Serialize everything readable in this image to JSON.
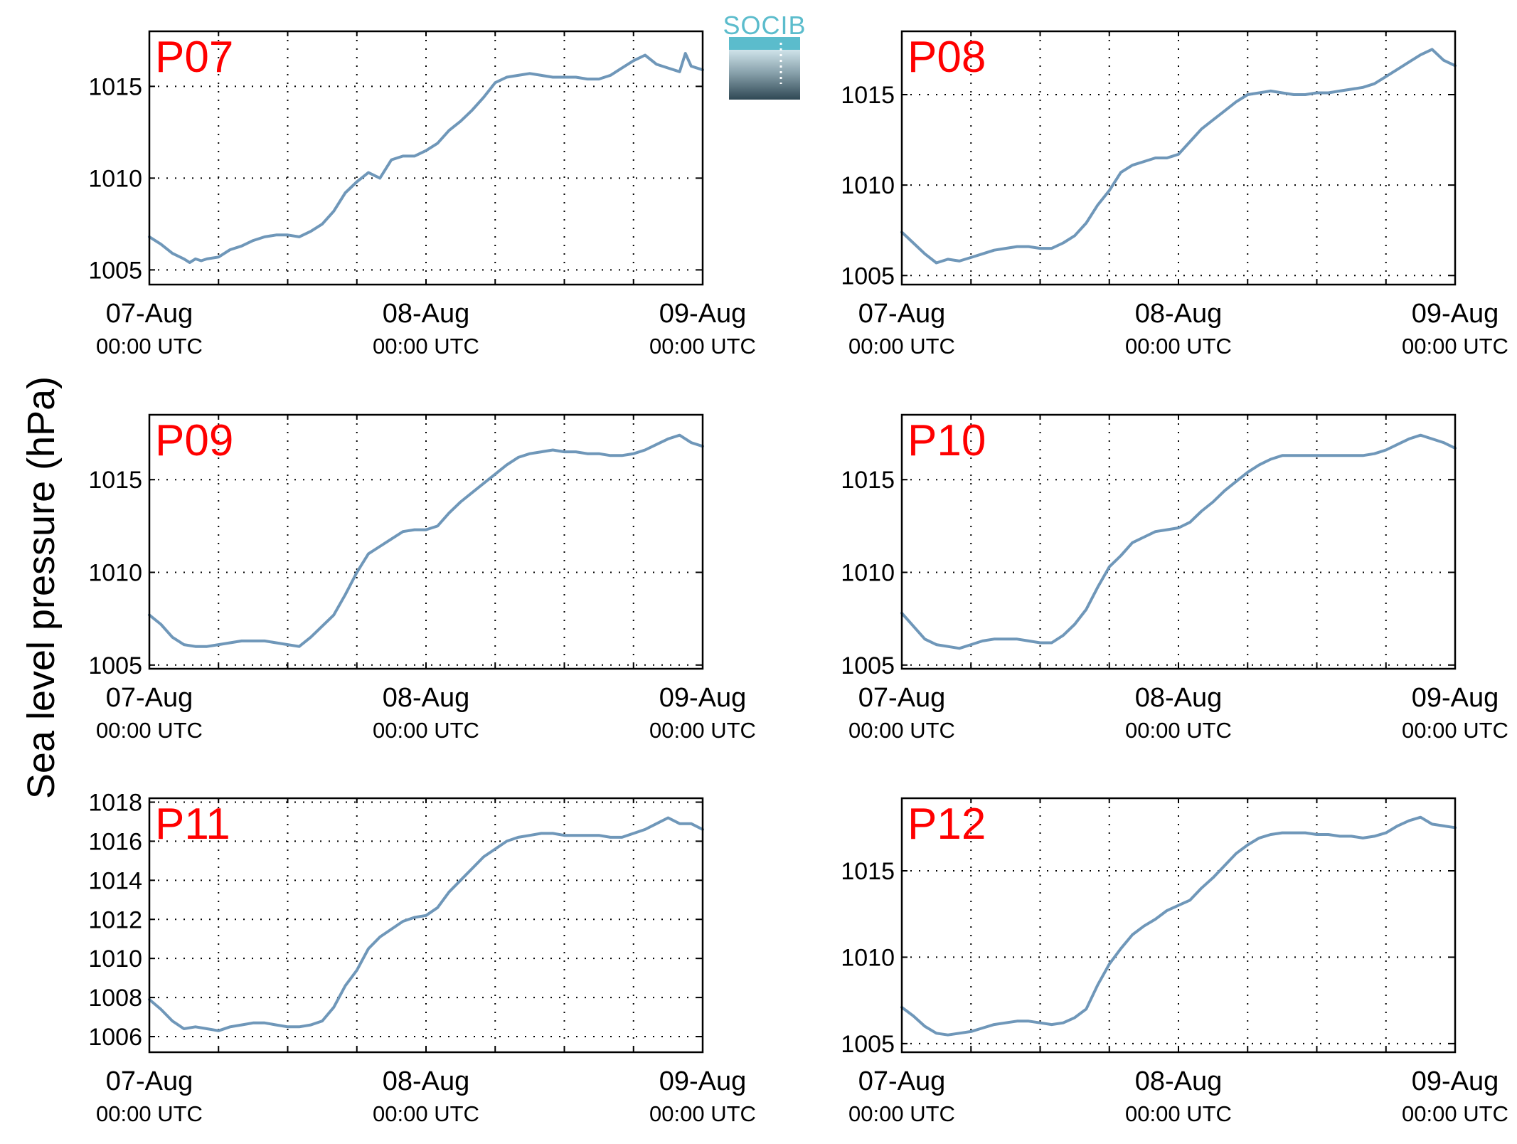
{
  "figure": {
    "ylabel": "Sea level pressure (hPa)",
    "logo_text": "SOCIB"
  },
  "colors": {
    "line": "#6f97b9",
    "panel_label": "#ff0000",
    "grid": "#000000"
  },
  "chart_data": [
    {
      "type": "line",
      "title": "P07",
      "ylim": [
        1004.2,
        1018
      ],
      "yticks": [
        1005,
        1010,
        1015
      ],
      "xlim": [
        0,
        48
      ],
      "xticks": [
        0,
        24,
        48
      ],
      "xticklabels": [
        [
          "07-Aug",
          "00:00 UTC"
        ],
        [
          "08-Aug",
          "00:00 UTC"
        ],
        [
          "09-Aug",
          "00:00 UTC"
        ]
      ],
      "grid": true,
      "series": [
        {
          "x": [
            0,
            1,
            2,
            3,
            3.5,
            4,
            4.5,
            5,
            6,
            7,
            8,
            9,
            10,
            11,
            12,
            13,
            14,
            15,
            16,
            17,
            18,
            19,
            20,
            21,
            21.5,
            22,
            22.5,
            23,
            24,
            25,
            26,
            27,
            28,
            29,
            30,
            31,
            32,
            33,
            34,
            35,
            36,
            37,
            38,
            39,
            40,
            41,
            42,
            43,
            44,
            45,
            46,
            46.5,
            47,
            48
          ],
          "y": [
            1006.8,
            1006.4,
            1005.9,
            1005.6,
            1005.4,
            1005.6,
            1005.5,
            1005.6,
            1005.7,
            1006.1,
            1006.3,
            1006.6,
            1006.8,
            1006.9,
            1006.9,
            1006.8,
            1007.1,
            1007.5,
            1008.2,
            1009.2,
            1009.8,
            1010.3,
            1010.0,
            1011.0,
            1011.1,
            1011.2,
            1011.2,
            1011.2,
            1011.5,
            1011.9,
            1012.6,
            1013.1,
            1013.7,
            1014.4,
            1015.2,
            1015.5,
            1015.6,
            1015.7,
            1015.6,
            1015.5,
            1015.5,
            1015.5,
            1015.4,
            1015.4,
            1015.6,
            1016.0,
            1016.4,
            1016.7,
            1016.2,
            1016.0,
            1015.8,
            1016.8,
            1016.1,
            1015.9
          ]
        }
      ]
    },
    {
      "type": "line",
      "title": "P08",
      "ylim": [
        1004.5,
        1018.5
      ],
      "yticks": [
        1005,
        1010,
        1015
      ],
      "xlim": [
        0,
        48
      ],
      "xticks": [
        0,
        24,
        48
      ],
      "xticklabels": [
        [
          "07-Aug",
          "00:00 UTC"
        ],
        [
          "08-Aug",
          "00:00 UTC"
        ],
        [
          "09-Aug",
          "00:00 UTC"
        ]
      ],
      "grid": true,
      "series": [
        {
          "x": [
            0,
            1,
            2,
            3,
            4,
            5,
            6,
            7,
            8,
            9,
            10,
            11,
            12,
            13,
            14,
            15,
            16,
            17,
            18,
            19,
            20,
            21,
            22,
            23,
            24,
            25,
            26,
            27,
            28,
            29,
            30,
            31,
            32,
            33,
            34,
            35,
            36,
            37,
            38,
            39,
            40,
            41,
            42,
            43,
            44,
            45,
            46,
            47,
            48
          ],
          "y": [
            1007.4,
            1006.8,
            1006.2,
            1005.7,
            1005.9,
            1005.8,
            1006.0,
            1006.2,
            1006.4,
            1006.5,
            1006.6,
            1006.6,
            1006.5,
            1006.5,
            1006.8,
            1007.2,
            1007.9,
            1008.9,
            1009.7,
            1010.7,
            1011.1,
            1011.3,
            1011.5,
            1011.5,
            1011.7,
            1012.4,
            1013.1,
            1013.6,
            1014.1,
            1014.6,
            1015.0,
            1015.1,
            1015.2,
            1015.1,
            1015.0,
            1015.0,
            1015.1,
            1015.1,
            1015.2,
            1015.3,
            1015.4,
            1015.6,
            1016.0,
            1016.4,
            1016.8,
            1017.2,
            1017.5,
            1016.9,
            1016.6
          ]
        }
      ]
    },
    {
      "type": "line",
      "title": "P09",
      "ylim": [
        1004.8,
        1018.5
      ],
      "yticks": [
        1005,
        1010,
        1015
      ],
      "xlim": [
        0,
        48
      ],
      "xticks": [
        0,
        24,
        48
      ],
      "xticklabels": [
        [
          "07-Aug",
          "00:00 UTC"
        ],
        [
          "08-Aug",
          "00:00 UTC"
        ],
        [
          "09-Aug",
          "00:00 UTC"
        ]
      ],
      "grid": true,
      "series": [
        {
          "x": [
            0,
            1,
            2,
            3,
            4,
            5,
            6,
            7,
            8,
            9,
            10,
            11,
            12,
            13,
            14,
            15,
            16,
            17,
            18,
            19,
            20,
            21,
            22,
            23,
            24,
            25,
            26,
            27,
            28,
            29,
            30,
            31,
            32,
            33,
            34,
            35,
            36,
            37,
            38,
            39,
            40,
            41,
            42,
            43,
            44,
            45,
            46,
            47,
            48
          ],
          "y": [
            1007.7,
            1007.2,
            1006.5,
            1006.1,
            1006.0,
            1006.0,
            1006.1,
            1006.2,
            1006.3,
            1006.3,
            1006.3,
            1006.2,
            1006.1,
            1006.0,
            1006.5,
            1007.1,
            1007.7,
            1008.8,
            1010.0,
            1011.0,
            1011.4,
            1011.8,
            1012.2,
            1012.3,
            1012.3,
            1012.5,
            1013.2,
            1013.8,
            1014.3,
            1014.8,
            1015.3,
            1015.8,
            1016.2,
            1016.4,
            1016.5,
            1016.6,
            1016.5,
            1016.5,
            1016.4,
            1016.4,
            1016.3,
            1016.3,
            1016.4,
            1016.6,
            1016.9,
            1017.2,
            1017.4,
            1017.0,
            1016.8
          ]
        }
      ]
    },
    {
      "type": "line",
      "title": "P10",
      "ylim": [
        1004.8,
        1018.5
      ],
      "yticks": [
        1005,
        1010,
        1015
      ],
      "xlim": [
        0,
        48
      ],
      "xticks": [
        0,
        24,
        48
      ],
      "xticklabels": [
        [
          "07-Aug",
          "00:00 UTC"
        ],
        [
          "08-Aug",
          "00:00 UTC"
        ],
        [
          "09-Aug",
          "00:00 UTC"
        ]
      ],
      "grid": true,
      "series": [
        {
          "x": [
            0,
            1,
            2,
            3,
            4,
            5,
            6,
            7,
            8,
            9,
            10,
            11,
            12,
            13,
            14,
            15,
            16,
            17,
            18,
            19,
            20,
            21,
            22,
            23,
            24,
            25,
            26,
            27,
            28,
            29,
            30,
            31,
            32,
            33,
            34,
            35,
            36,
            37,
            38,
            39,
            40,
            41,
            42,
            43,
            44,
            45,
            46,
            47,
            48
          ],
          "y": [
            1007.8,
            1007.1,
            1006.4,
            1006.1,
            1006.0,
            1005.9,
            1006.1,
            1006.3,
            1006.4,
            1006.4,
            1006.4,
            1006.3,
            1006.2,
            1006.2,
            1006.6,
            1007.2,
            1008.0,
            1009.2,
            1010.3,
            1010.9,
            1011.6,
            1011.9,
            1012.2,
            1012.3,
            1012.4,
            1012.7,
            1013.3,
            1013.8,
            1014.4,
            1014.9,
            1015.4,
            1015.8,
            1016.1,
            1016.3,
            1016.3,
            1016.3,
            1016.3,
            1016.3,
            1016.3,
            1016.3,
            1016.3,
            1016.4,
            1016.6,
            1016.9,
            1017.2,
            1017.4,
            1017.2,
            1017.0,
            1016.7
          ]
        }
      ]
    },
    {
      "type": "line",
      "title": "P11",
      "ylim": [
        1005.2,
        1018.2
      ],
      "yticks": [
        1006,
        1008,
        1010,
        1012,
        1014,
        1016,
        1018
      ],
      "xlim": [
        0,
        48
      ],
      "xticks": [
        0,
        24,
        48
      ],
      "xticklabels": [
        [
          "07-Aug",
          "00:00 UTC"
        ],
        [
          "08-Aug",
          "00:00 UTC"
        ],
        [
          "09-Aug",
          "00:00 UTC"
        ]
      ],
      "grid": true,
      "series": [
        {
          "x": [
            0,
            1,
            2,
            3,
            4,
            5,
            6,
            7,
            8,
            9,
            10,
            11,
            12,
            13,
            14,
            15,
            16,
            17,
            18,
            19,
            20,
            21,
            22,
            23,
            24,
            25,
            26,
            27,
            28,
            29,
            30,
            31,
            32,
            33,
            34,
            35,
            36,
            37,
            38,
            39,
            40,
            41,
            42,
            43,
            44,
            45,
            46,
            47,
            48
          ],
          "y": [
            1007.9,
            1007.4,
            1006.8,
            1006.4,
            1006.5,
            1006.4,
            1006.3,
            1006.5,
            1006.6,
            1006.7,
            1006.7,
            1006.6,
            1006.5,
            1006.5,
            1006.6,
            1006.8,
            1007.5,
            1008.6,
            1009.4,
            1010.5,
            1011.1,
            1011.5,
            1011.9,
            1012.1,
            1012.2,
            1012.6,
            1013.4,
            1014.0,
            1014.6,
            1015.2,
            1015.6,
            1016.0,
            1016.2,
            1016.3,
            1016.4,
            1016.4,
            1016.3,
            1016.3,
            1016.3,
            1016.3,
            1016.2,
            1016.2,
            1016.4,
            1016.6,
            1016.9,
            1017.2,
            1016.9,
            1016.9,
            1016.6
          ]
        }
      ]
    },
    {
      "type": "line",
      "title": "P12",
      "ylim": [
        1004.5,
        1019.2
      ],
      "yticks": [
        1005,
        1010,
        1015
      ],
      "xlim": [
        0,
        48
      ],
      "xticks": [
        0,
        24,
        48
      ],
      "xticklabels": [
        [
          "07-Aug",
          "00:00 UTC"
        ],
        [
          "08-Aug",
          "00:00 UTC"
        ],
        [
          "09-Aug",
          "00:00 UTC"
        ]
      ],
      "grid": true,
      "series": [
        {
          "x": [
            0,
            1,
            2,
            3,
            4,
            5,
            6,
            7,
            8,
            9,
            10,
            11,
            12,
            13,
            14,
            15,
            16,
            17,
            18,
            19,
            20,
            21,
            22,
            23,
            24,
            25,
            26,
            27,
            28,
            29,
            30,
            31,
            32,
            33,
            34,
            35,
            36,
            37,
            38,
            39,
            40,
            41,
            42,
            43,
            44,
            45,
            46,
            47,
            48
          ],
          "y": [
            1007.1,
            1006.6,
            1006.0,
            1005.6,
            1005.5,
            1005.6,
            1005.7,
            1005.9,
            1006.1,
            1006.2,
            1006.3,
            1006.3,
            1006.2,
            1006.1,
            1006.2,
            1006.5,
            1007.0,
            1008.4,
            1009.6,
            1010.5,
            1011.3,
            1011.8,
            1012.2,
            1012.7,
            1013.0,
            1013.3,
            1014.0,
            1014.6,
            1015.3,
            1016.0,
            1016.5,
            1016.9,
            1017.1,
            1017.2,
            1017.2,
            1017.2,
            1017.1,
            1017.1,
            1017.0,
            1017.0,
            1016.9,
            1017.0,
            1017.2,
            1017.6,
            1017.9,
            1018.1,
            1017.7,
            1017.6,
            1017.5
          ]
        }
      ]
    }
  ]
}
